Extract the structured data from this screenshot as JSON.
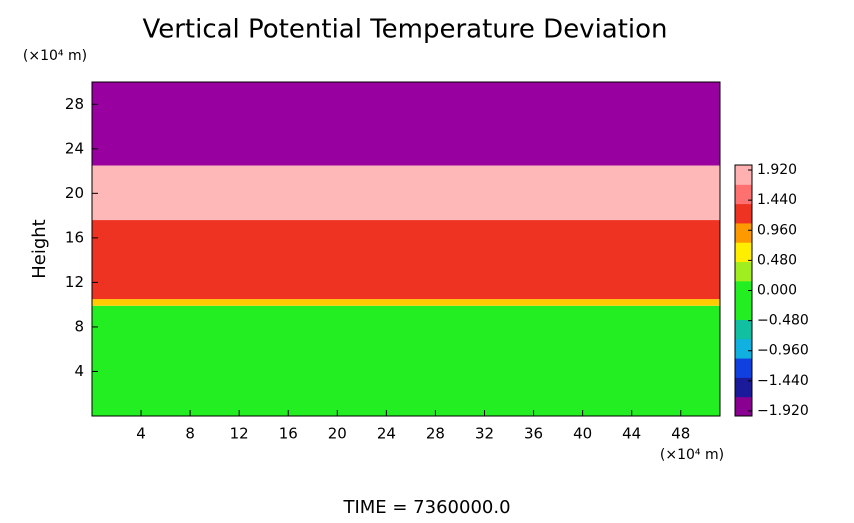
{
  "chart_data": {
    "type": "layers",
    "title": "Vertical Potential Temperature Deviation",
    "ylabel": "Height",
    "y_unit": "(×10⁴ m)",
    "x_unit": "(×10⁴ m)",
    "footer": "TIME = 7360000.0",
    "xlim": [
      0,
      51.2
    ],
    "ylim": [
      0,
      30
    ],
    "xticks": [
      4,
      8,
      12,
      16,
      20,
      24,
      28,
      32,
      36,
      40,
      44,
      48
    ],
    "yticks": [
      4,
      8,
      12,
      16,
      20,
      24,
      28
    ],
    "layers": [
      {
        "range": [
          0,
          9.9
        ],
        "value": 0.1,
        "color": "#22ee22"
      },
      {
        "range": [
          9.9,
          10.5
        ],
        "value": 0.9,
        "color": "#ffcc00"
      },
      {
        "range": [
          10.5,
          17.6
        ],
        "value": 1.5,
        "color": "#ee3322"
      },
      {
        "range": [
          17.6,
          22.5
        ],
        "value": 1.85,
        "color": "#ffb8b8"
      },
      {
        "range": [
          22.5,
          30
        ],
        "value": -2.0,
        "color": "#9900a0"
      }
    ],
    "colorbar": {
      "clim": [
        -2.0,
        2.0
      ],
      "colors": [
        "#8a0090",
        "#1a1a9a",
        "#1040e0",
        "#10b0e0",
        "#10c0a0",
        "#22ee22",
        "#22ee22",
        "#a0ee20",
        "#ffee00",
        "#ff9900",
        "#ee3322",
        "#ff7070",
        "#ffb0b0"
      ],
      "ticks": [
        {
          "value": 1.92,
          "label": "1.920"
        },
        {
          "value": 1.44,
          "label": "1.440"
        },
        {
          "value": 0.96,
          "label": "0.960"
        },
        {
          "value": 0.48,
          "label": "0.480"
        },
        {
          "value": 0.0,
          "label": "0.000"
        },
        {
          "value": -0.48,
          "label": "−0.480"
        },
        {
          "value": -0.96,
          "label": "−0.960"
        },
        {
          "value": -1.44,
          "label": "−1.440"
        },
        {
          "value": -1.92,
          "label": "−1.920"
        }
      ]
    }
  }
}
